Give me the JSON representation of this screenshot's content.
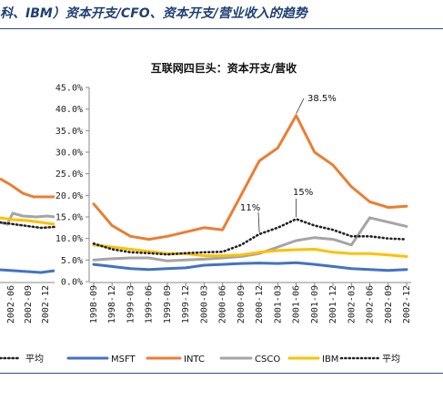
{
  "header": {
    "title": "科、IBM）资本开支/CFO、资本开支/营业收入的趋势"
  },
  "left_fragment": {
    "tick_labels": [
      "2002-06",
      "2002-09",
      "2002-12"
    ],
    "legend_label": "平均",
    "colors": {
      "intc": "#ed7d31",
      "csco": "#a5a5a5",
      "ibm": "#ffc000",
      "msft": "#4472c4",
      "avg": "#222222"
    }
  },
  "chart_data": {
    "type": "line",
    "title": "互联网四巨头：资本开支/营收",
    "x": [
      "1998-09",
      "1998-12",
      "1999-03",
      "1999-06",
      "1999-09",
      "1999-12",
      "2000-03",
      "2000-06",
      "2000-09",
      "2000-12",
      "2001-03",
      "2001-06",
      "2001-09",
      "2001-12",
      "2002-03",
      "2002-06",
      "2002-09",
      "2002-12"
    ],
    "ylim": [
      0,
      45
    ],
    "yticks": [
      "0.0%",
      "5.0%",
      "10.0%",
      "15.0%",
      "20.0%",
      "25.0%",
      "30.0%",
      "35.0%",
      "40.0%",
      "45.0%"
    ],
    "grid": false,
    "legend_position": "bottom",
    "series": [
      {
        "name": "MSFT",
        "color": "#4472c4",
        "style": "solid",
        "values": [
          4.0,
          3.5,
          3.0,
          2.8,
          3.0,
          3.2,
          3.8,
          4.0,
          4.2,
          4.3,
          4.2,
          4.4,
          4.0,
          3.5,
          3.0,
          2.8,
          2.6,
          2.8
        ]
      },
      {
        "name": "INTC",
        "color": "#ed7d31",
        "style": "solid",
        "values": [
          18.0,
          13.0,
          10.5,
          9.8,
          10.5,
          11.5,
          12.5,
          12.0,
          20.0,
          28.0,
          31.0,
          38.5,
          30.0,
          27.0,
          22.0,
          18.5,
          17.2,
          17.5
        ]
      },
      {
        "name": "CSCO",
        "color": "#a5a5a5",
        "style": "solid",
        "values": [
          5.0,
          5.3,
          5.5,
          5.5,
          4.8,
          5.0,
          5.2,
          5.5,
          5.8,
          6.5,
          8.0,
          9.5,
          10.2,
          9.8,
          8.5,
          14.8,
          13.8,
          12.8
        ]
      },
      {
        "name": "IBM",
        "color": "#ffc000",
        "style": "solid",
        "values": [
          8.5,
          8.0,
          7.5,
          7.0,
          6.5,
          6.5,
          6.0,
          6.0,
          6.2,
          6.8,
          7.2,
          7.4,
          7.5,
          6.8,
          6.5,
          6.5,
          6.2,
          5.8
        ]
      },
      {
        "name": "平均",
        "color": "#222222",
        "style": "dotted",
        "values": [
          8.8,
          7.5,
          6.8,
          6.6,
          6.3,
          6.6,
          6.8,
          6.9,
          8.5,
          11.0,
          12.5,
          14.5,
          13.0,
          12.0,
          10.5,
          10.5,
          10.0,
          9.8
        ]
      }
    ],
    "annotations": [
      {
        "text": "38.5%",
        "series": "INTC",
        "x": "2001-06"
      },
      {
        "text": "15%",
        "series": "平均",
        "x": "2001-06"
      },
      {
        "text": "11%",
        "series": "平均",
        "x": "2000-12"
      }
    ]
  }
}
